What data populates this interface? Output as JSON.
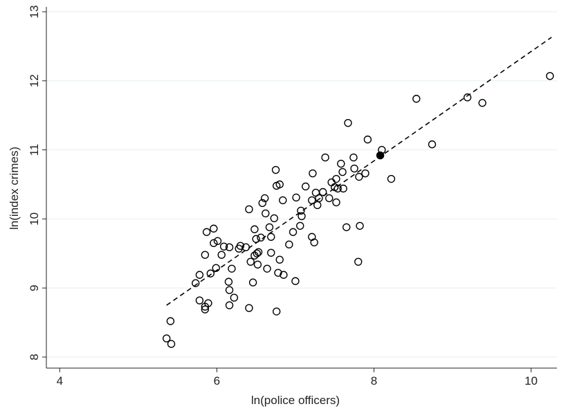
{
  "chart_data": {
    "type": "scatter",
    "xlabel": "ln(police officers)",
    "ylabel": "ln(index crimes)",
    "xlim": [
      3.83,
      10.33
    ],
    "ylim": [
      7.84,
      13.07
    ],
    "xticks": [
      4,
      6,
      8,
      10
    ],
    "yticks": [
      8,
      9,
      10,
      11,
      12,
      13
    ],
    "grid": true,
    "series": [
      {
        "color": "#000000",
        "marker": "open",
        "x": [
          5.36,
          5.42,
          5.41,
          5.73,
          5.78,
          5.78,
          5.85,
          5.85,
          5.89,
          5.85,
          5.87,
          5.96,
          5.96,
          6.01,
          5.99,
          5.92,
          6.06,
          6.09,
          6.16,
          6.19,
          6.15,
          6.16,
          6.22,
          6.16,
          6.28,
          6.3,
          6.37,
          6.41,
          6.43,
          6.41,
          6.46,
          6.48,
          6.5,
          6.48,
          6.51,
          6.53,
          6.56,
          6.52,
          6.58,
          6.61,
          6.62,
          6.64,
          6.67,
          6.69,
          6.69,
          6.73,
          6.75,
          6.76,
          6.8,
          6.78,
          6.8,
          6.76,
          6.85,
          6.84,
          6.92,
          6.97,
          7.0,
          7.01,
          7.06,
          7.07,
          7.08,
          7.13,
          7.21,
          7.24,
          7.21,
          7.22,
          7.26,
          7.28,
          7.3,
          7.35,
          7.38,
          7.43,
          7.46,
          7.5,
          7.52,
          7.52,
          7.54,
          7.58,
          7.6,
          7.61,
          7.65,
          7.67,
          7.74,
          7.75,
          7.8,
          7.82,
          7.81,
          7.89,
          7.92,
          8.1,
          8.22,
          8.54,
          8.74,
          9.19,
          9.38,
          10.24
        ],
        "values": [
          8.27,
          8.19,
          8.52,
          9.07,
          9.19,
          8.82,
          8.73,
          8.69,
          8.78,
          9.48,
          9.81,
          9.86,
          9.65,
          9.68,
          9.29,
          9.21,
          9.48,
          9.6,
          9.59,
          9.28,
          9.09,
          8.97,
          8.86,
          8.75,
          9.57,
          9.61,
          9.59,
          10.14,
          9.38,
          8.71,
          9.08,
          9.85,
          9.71,
          9.47,
          9.5,
          9.52,
          9.73,
          9.34,
          10.23,
          10.3,
          10.08,
          9.28,
          9.88,
          9.74,
          9.51,
          10.01,
          10.71,
          10.48,
          10.5,
          9.22,
          9.41,
          8.66,
          9.19,
          10.27,
          9.63,
          9.81,
          9.1,
          10.31,
          9.9,
          10.12,
          10.04,
          10.47,
          9.74,
          9.66,
          10.27,
          10.66,
          10.38,
          10.2,
          10.3,
          10.39,
          10.89,
          10.3,
          10.53,
          10.46,
          10.58,
          10.24,
          10.44,
          10.8,
          10.68,
          10.44,
          9.88,
          11.39,
          10.89,
          10.73,
          9.38,
          9.9,
          10.61,
          10.66,
          11.15,
          11.0,
          10.58,
          11.74,
          11.08,
          11.76,
          11.68,
          12.07
        ]
      },
      {
        "color": "#000000",
        "marker": "filled",
        "x": [
          8.08
        ],
        "values": [
          10.92
        ]
      }
    ],
    "fit_line": {
      "color": "#000000",
      "style": "dashed",
      "x": [
        5.36,
        10.26
      ],
      "values": [
        8.75,
        12.63
      ]
    }
  }
}
